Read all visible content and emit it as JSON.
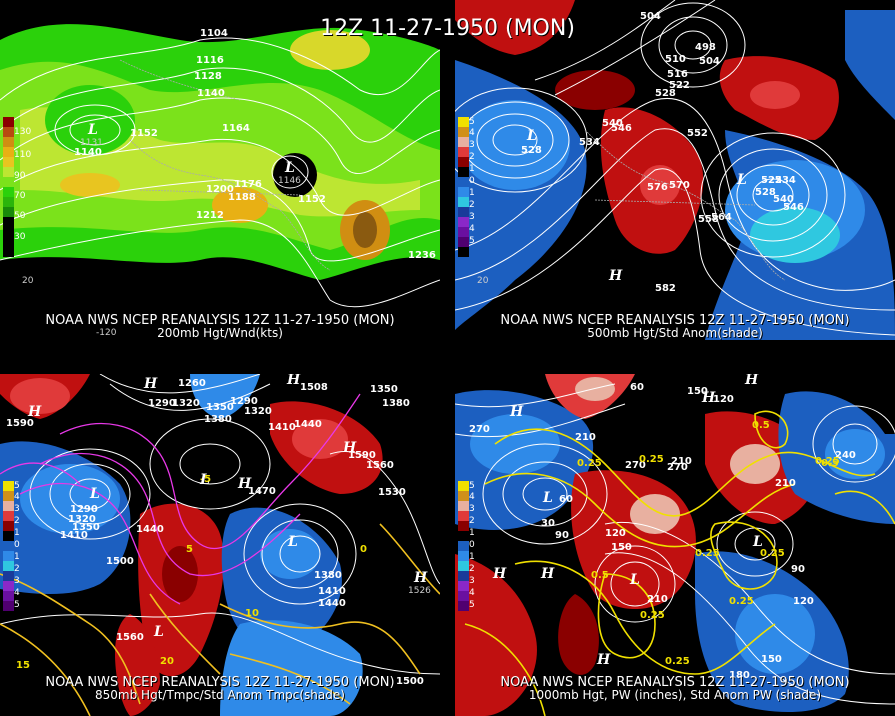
{
  "title": "12Z 11-27-1950 (MON)",
  "panels": [
    {
      "id": "p200",
      "caption1": "NOAA NWS NCEP REANALYSIS 12Z 11-27-1950 (MON)",
      "caption2": "200mb Hgt/Wnd(kts)",
      "colorbar_labels": [
        "130",
        "110",
        "90",
        "70",
        "50",
        "30"
      ],
      "labels": [
        "1104",
        "1116",
        "1128",
        "1140",
        "1152",
        "1164",
        "1140",
        "1152",
        "1200",
        "1176",
        "1188",
        "1212",
        "1236",
        "1152",
        "1131",
        "1146"
      ],
      "low_labels": [
        "L",
        "L"
      ],
      "lon_labels": [
        "-120",
        "20"
      ]
    },
    {
      "id": "p500",
      "caption1": "NOAA NWS NCEP REANALYSIS 12Z 11-27-1950 (MON)",
      "caption2": "500mb Hgt/Std Anom(shade)",
      "colorbar_labels": [
        "5",
        "4",
        "3",
        "2",
        "1",
        "0",
        "1",
        "2",
        "3",
        "4",
        "5"
      ],
      "labels": [
        "504",
        "510",
        "498",
        "504",
        "516",
        "522",
        "528",
        "546",
        "540",
        "534",
        "552",
        "576",
        "570",
        "558",
        "564",
        "522",
        "528",
        "534",
        "540",
        "546",
        "582",
        "528"
      ],
      "low_labels": [
        "L",
        "L",
        "H"
      ],
      "lon_labels": [
        "20"
      ]
    },
    {
      "id": "p850",
      "caption1": "NOAA NWS NCEP REANALYSIS 12Z 11-27-1950 (MON)",
      "caption2": "850mb Hgt/Tmpc/Std Anom Tmpc(shade)",
      "colorbar_labels": [
        "5",
        "4",
        "3",
        "2",
        "1",
        "0",
        "1",
        "2",
        "3",
        "4",
        "5"
      ],
      "labels": [
        "1260",
        "1290",
        "1320",
        "1350",
        "1380",
        "1410",
        "1290",
        "1320",
        "1508",
        "1350",
        "1380",
        "1590",
        "1440",
        "1590",
        "1560",
        "1530",
        "1470",
        "1290",
        "1320",
        "1350",
        "1410",
        "1440",
        "1500",
        "1380",
        "1410",
        "1440",
        "1560",
        "1526",
        "1500",
        "10",
        "20",
        "15",
        "5",
        "0",
        "-5"
      ],
      "low_labels": [
        "H",
        "H",
        "H",
        "L",
        "L",
        "L",
        "L",
        "H",
        "H",
        "H"
      ],
      "lon_labels": []
    },
    {
      "id": "p1000",
      "caption1": "NOAA NWS NCEP REANALYSIS 12Z 11-27-1950 (MON)",
      "caption2": "1000mb Hgt, PW (inches), Std Anom PW (shade)",
      "colorbar_labels": [
        "5",
        "4",
        "3",
        "2",
        "1",
        "0",
        "1",
        "2",
        "3",
        "4",
        "5"
      ],
      "labels": [
        "60",
        "150",
        "120",
        "270",
        "210",
        "0.25",
        "270",
        "0.25",
        "210",
        "270",
        "240",
        "0.25",
        "210",
        "0.5",
        "30",
        "90",
        "60",
        "120",
        "150",
        "0.25",
        "0.5",
        "0.25",
        "210",
        "0.25",
        "120",
        "0.25",
        "150",
        "180",
        "90",
        "0.5",
        "0.25"
      ],
      "low_labels": [
        "H",
        "H",
        "H",
        "L",
        "L",
        "H",
        "H",
        "L",
        "H"
      ],
      "lon_labels": []
    }
  ]
}
